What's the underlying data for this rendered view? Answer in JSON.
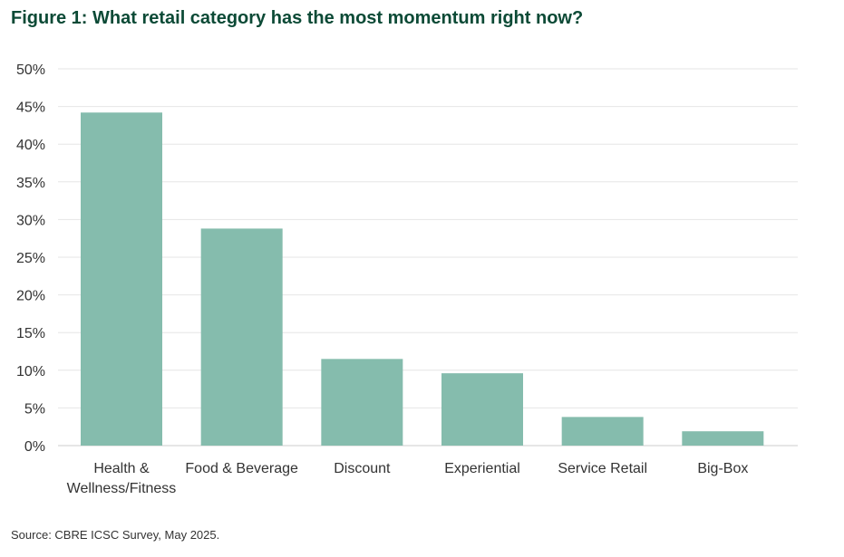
{
  "chart_data": {
    "type": "bar",
    "title": "Figure 1: What retail category has the most momentum right now?",
    "categories": [
      "Health & Wellness/Fitness",
      "Food & Beverage",
      "Discount",
      "Experiential",
      "Service Retail",
      "Big-Box"
    ],
    "category_lines": [
      [
        "Health &",
        "Wellness/Fitness"
      ],
      [
        "Food & Beverage"
      ],
      [
        "Discount"
      ],
      [
        "Experiential"
      ],
      [
        "Service Retail"
      ],
      [
        "Big-Box"
      ]
    ],
    "values": [
      44.2,
      28.8,
      11.5,
      9.6,
      3.8,
      1.9
    ],
    "ylim": [
      0,
      50
    ],
    "yticks": [
      0,
      5,
      10,
      15,
      20,
      25,
      30,
      35,
      40,
      45,
      50
    ],
    "ytick_suffix": "%",
    "xlabel": "",
    "ylabel": "",
    "grid": true,
    "bar_color": "#85bcad",
    "grid_color": "#e6e6e6"
  },
  "source": "Source: CBRE ICSC Survey, May 2025."
}
